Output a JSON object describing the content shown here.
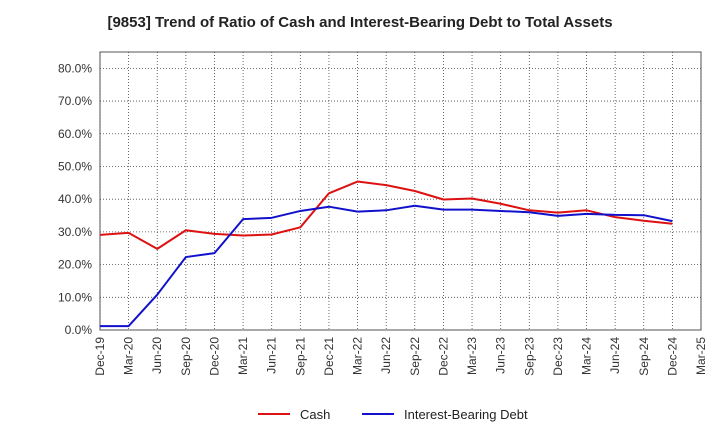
{
  "chart_data": {
    "type": "line",
    "title": "[9853]  Trend of Ratio of Cash and Interest-Bearing Debt to Total Assets",
    "xlabel": "",
    "ylabel": "",
    "ylim": [
      0,
      0.85
    ],
    "y_ticks": [
      {
        "value": 0.0,
        "label": "0.0%"
      },
      {
        "value": 0.1,
        "label": "10.0%"
      },
      {
        "value": 0.2,
        "label": "20.0%"
      },
      {
        "value": 0.3,
        "label": "30.0%"
      },
      {
        "value": 0.4,
        "label": "40.0%"
      },
      {
        "value": 0.5,
        "label": "50.0%"
      },
      {
        "value": 0.6,
        "label": "60.0%"
      },
      {
        "value": 0.7,
        "label": "70.0%"
      },
      {
        "value": 0.8,
        "label": "80.0%"
      }
    ],
    "categories": [
      "Dec-19",
      "Mar-20",
      "Jun-20",
      "Sep-20",
      "Dec-20",
      "Mar-21",
      "Jun-21",
      "Sep-21",
      "Dec-21",
      "Mar-22",
      "Jun-22",
      "Sep-22",
      "Dec-22",
      "Mar-23",
      "Jun-23",
      "Sep-23",
      "Dec-23",
      "Mar-24",
      "Jun-24",
      "Sep-24",
      "Dec-24",
      "Mar-25"
    ],
    "grid": true,
    "legend": "bottom",
    "series": [
      {
        "name": "Cash",
        "color": "#dd1111",
        "values": [
          0.291,
          0.297,
          0.248,
          0.305,
          0.294,
          0.289,
          0.292,
          0.314,
          0.418,
          0.454,
          0.443,
          0.425,
          0.399,
          0.402,
          0.386,
          0.366,
          0.359,
          0.366,
          0.345,
          0.334,
          0.325,
          null
        ]
      },
      {
        "name": "Interest-Bearing Debt",
        "color": "#1111cc",
        "values": [
          0.012,
          0.012,
          0.108,
          0.223,
          0.235,
          0.339,
          0.343,
          0.364,
          0.377,
          0.362,
          0.366,
          0.38,
          0.368,
          0.368,
          0.364,
          0.36,
          0.349,
          0.355,
          0.352,
          0.351,
          0.333,
          null
        ]
      }
    ]
  }
}
